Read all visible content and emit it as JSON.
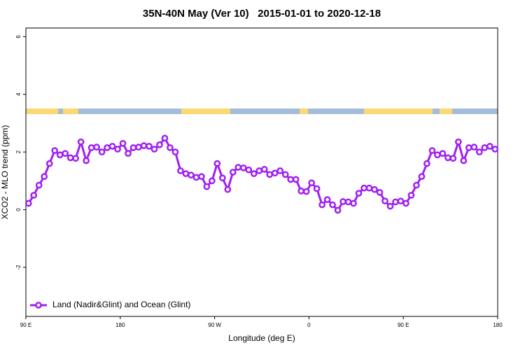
{
  "chart_data": {
    "type": "line",
    "title": "35N-40N May (Ver 10)   2015-01-01 to 2020-12-18",
    "x_label": "Longitude (deg E)",
    "y_label": "XCO2 - MLO trend (ppm)",
    "xlim": [
      90,
      540
    ],
    "xticks": [
      {
        "value": 90,
        "label": "90 E"
      },
      {
        "value": 180,
        "label": "180"
      },
      {
        "value": 270,
        "label": "90 W"
      },
      {
        "value": 360,
        "label": "0"
      },
      {
        "value": 450,
        "label": "90 E"
      },
      {
        "value": 540,
        "label": "180"
      }
    ],
    "ylim": [
      -3.7,
      6.3
    ],
    "yticks": [
      -2,
      0,
      2,
      4,
      6
    ],
    "legend": "bottom-left",
    "x": [
      92.5,
      97.5,
      102.5,
      107.5,
      112.5,
      117.5,
      122.5,
      127.5,
      132.5,
      137.5,
      142.5,
      147.5,
      152.5,
      157.5,
      162.5,
      167.5,
      172.5,
      177.5,
      182.5,
      187.5,
      192.5,
      197.5,
      202.5,
      207.5,
      212.5,
      217.5,
      222.5,
      227.5,
      232.5,
      237.5,
      242.5,
      247.5,
      252.5,
      257.5,
      262.5,
      267.5,
      272.5,
      277.5,
      282.5,
      287.5,
      292.5,
      297.5,
      302.5,
      307.5,
      312.5,
      317.5,
      322.5,
      327.5,
      332.5,
      337.5,
      342.5,
      347.5,
      352.5,
      357.5,
      362.5,
      367.5,
      372.5,
      377.5,
      382.5,
      387.5,
      392.5,
      397.5,
      402.5,
      407.5,
      412.5,
      417.5,
      422.5,
      427.5,
      432.5,
      437.5,
      442.5,
      447.5,
      452.5,
      457.5,
      462.5,
      467.5,
      472.5,
      477.5,
      482.5,
      487.5,
      492.5,
      497.5,
      502.5,
      507.5,
      512.5,
      517.5,
      522.5,
      527.5,
      532.5,
      537.5
    ],
    "series": [
      {
        "name": "Land (Nadir&Glint) and Ocean (Glint)",
        "color": "#a020f0",
        "values": [
          0.22,
          0.5,
          0.85,
          1.15,
          1.6,
          2.05,
          1.9,
          1.95,
          1.8,
          1.78,
          2.35,
          1.7,
          2.15,
          2.17,
          2.0,
          2.15,
          2.2,
          2.1,
          2.3,
          1.95,
          2.15,
          2.17,
          2.22,
          2.2,
          2.1,
          2.25,
          2.48,
          2.15,
          2.0,
          1.35,
          1.25,
          1.2,
          1.12,
          1.15,
          0.8,
          1.0,
          1.6,
          1.1,
          0.7,
          1.3,
          1.47,
          1.45,
          1.38,
          1.25,
          1.35,
          1.4,
          1.22,
          1.27,
          1.35,
          1.22,
          1.05,
          1.05,
          0.65,
          0.63,
          0.93,
          0.73,
          0.17,
          0.35,
          0.17,
          -0.02,
          0.28,
          0.27,
          0.22,
          0.57,
          0.75,
          0.75,
          0.7,
          0.6,
          0.3,
          0.12,
          0.27,
          0.3,
          0.22,
          0.5,
          0.85,
          1.15,
          1.6,
          2.05,
          1.9,
          1.95,
          1.8,
          1.78,
          2.35,
          1.7,
          2.15,
          2.17,
          2.0,
          2.15,
          2.2,
          2.1
        ]
      }
    ]
  }
}
